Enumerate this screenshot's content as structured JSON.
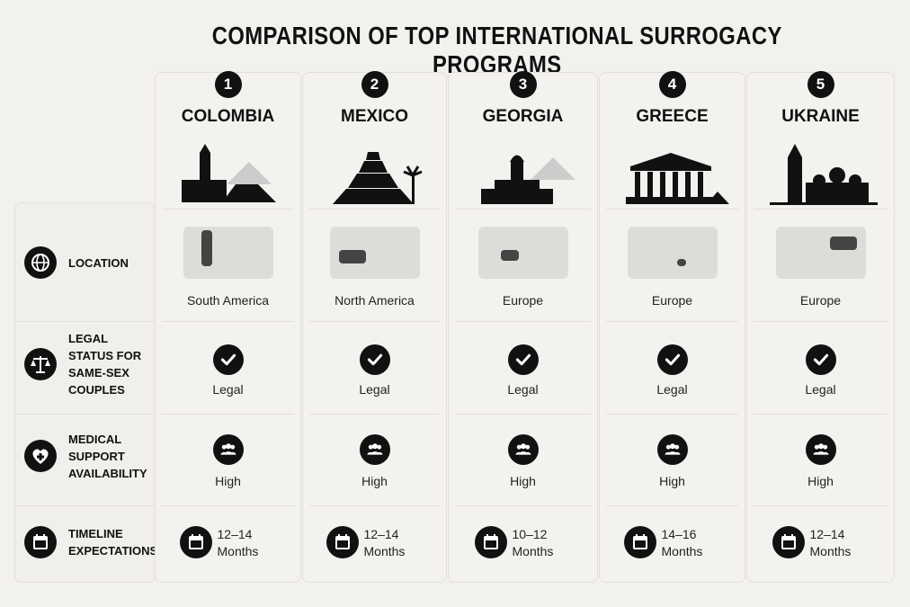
{
  "header": {
    "title": "COMPARISON OF TOP INTERNATIONAL SURROGACY PROGRAMS"
  },
  "row_labels": [
    "LOCATION",
    "LEGAL STATUS FOR SAME-SEX COUPLES",
    "MEDICAL SUPPORT AVAILABILITY",
    "TIMELINE EXPECTATIONS"
  ],
  "columns": [
    {
      "rank": "1",
      "name": "COLOMBIA",
      "location": "South America",
      "legal": "Legal",
      "medical": "High",
      "timeline_range": "12–14",
      "timeline_unit": "Months"
    },
    {
      "rank": "2",
      "name": "MEXICO",
      "location": "North America",
      "legal": "Legal",
      "medical": "High",
      "timeline_range": "12–14",
      "timeline_unit": "Months"
    },
    {
      "rank": "3",
      "name": "GEORGIA",
      "location": "Europe",
      "legal": "Legal",
      "medical": "High",
      "timeline_range": "10–12",
      "timeline_unit": "Months"
    },
    {
      "rank": "4",
      "name": "GREECE",
      "location": "Europe",
      "legal": "Legal",
      "medical": "High",
      "timeline_range": "14–16",
      "timeline_unit": "Months"
    },
    {
      "rank": "5",
      "name": "UKRAINE",
      "location": "Europe",
      "legal": "Legal",
      "medical": "High",
      "timeline_range": "12–14",
      "timeline_unit": "Months"
    }
  ]
}
